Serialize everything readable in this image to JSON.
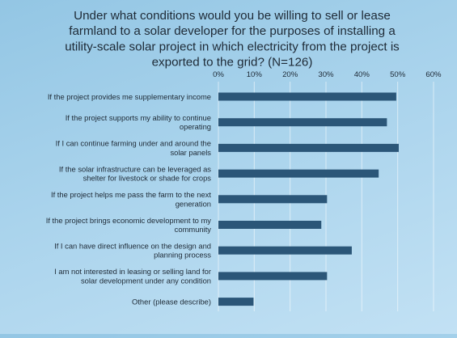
{
  "chart_data": {
    "type": "bar",
    "orientation": "horizontal",
    "title": "Under what conditions would you be willing to sell or lease farmland to a solar developer for the purposes of installing a utility-scale solar project in which electricity from the project is exported to the grid? (N=126)",
    "title_lines": [
      "Under what conditions would you be willing to sell or lease",
      "farmland to a solar developer for the purposes of installing a",
      "utility-scale solar project in which electricity from the project is",
      "exported to the grid? (N=126)"
    ],
    "xlim": [
      0,
      60
    ],
    "x_ticks": [
      "0%",
      "10%",
      "20%",
      "30%",
      "40%",
      "50%",
      "60%"
    ],
    "x_tick_values": [
      0,
      10,
      20,
      30,
      40,
      50,
      60
    ],
    "tick_position": "top",
    "grid": true,
    "categories": [
      "If the project provides me supplementary income",
      "If the project supports my ability to continue operating",
      "If I can continue farming under and around the solar panels",
      "If the solar infrastructure can be leveraged as shelter for livestock or shade for crops",
      "If the project helps me pass the farm to the next generation",
      "If the project brings economic development to my community",
      "If I can have direct influence on the design and planning process",
      "I am not interested in leasing or selling land for solar development under any condition",
      "Other (please describe)"
    ],
    "category_lines": [
      [
        "If the project provides me supplementary income"
      ],
      [
        "If the project supports my ability to continue",
        "operating"
      ],
      [
        "If I can continue farming under and around the",
        "solar panels"
      ],
      [
        "If the solar infrastructure can be leveraged as",
        "shelter for livestock or shade for crops"
      ],
      [
        "If the project helps me pass the farm to the next",
        "generation"
      ],
      [
        "If the project brings economic development to my",
        "community"
      ],
      [
        "If I can have direct influence on the design and",
        "planning process"
      ],
      [
        "I am not interested in leasing or selling land for",
        "solar development under any condition"
      ],
      [
        "Other (please describe)"
      ]
    ],
    "values": [
      49.6,
      47.0,
      50.3,
      44.7,
      30.3,
      28.7,
      37.2,
      30.3,
      9.8
    ],
    "bar_color": "#2b5678"
  }
}
